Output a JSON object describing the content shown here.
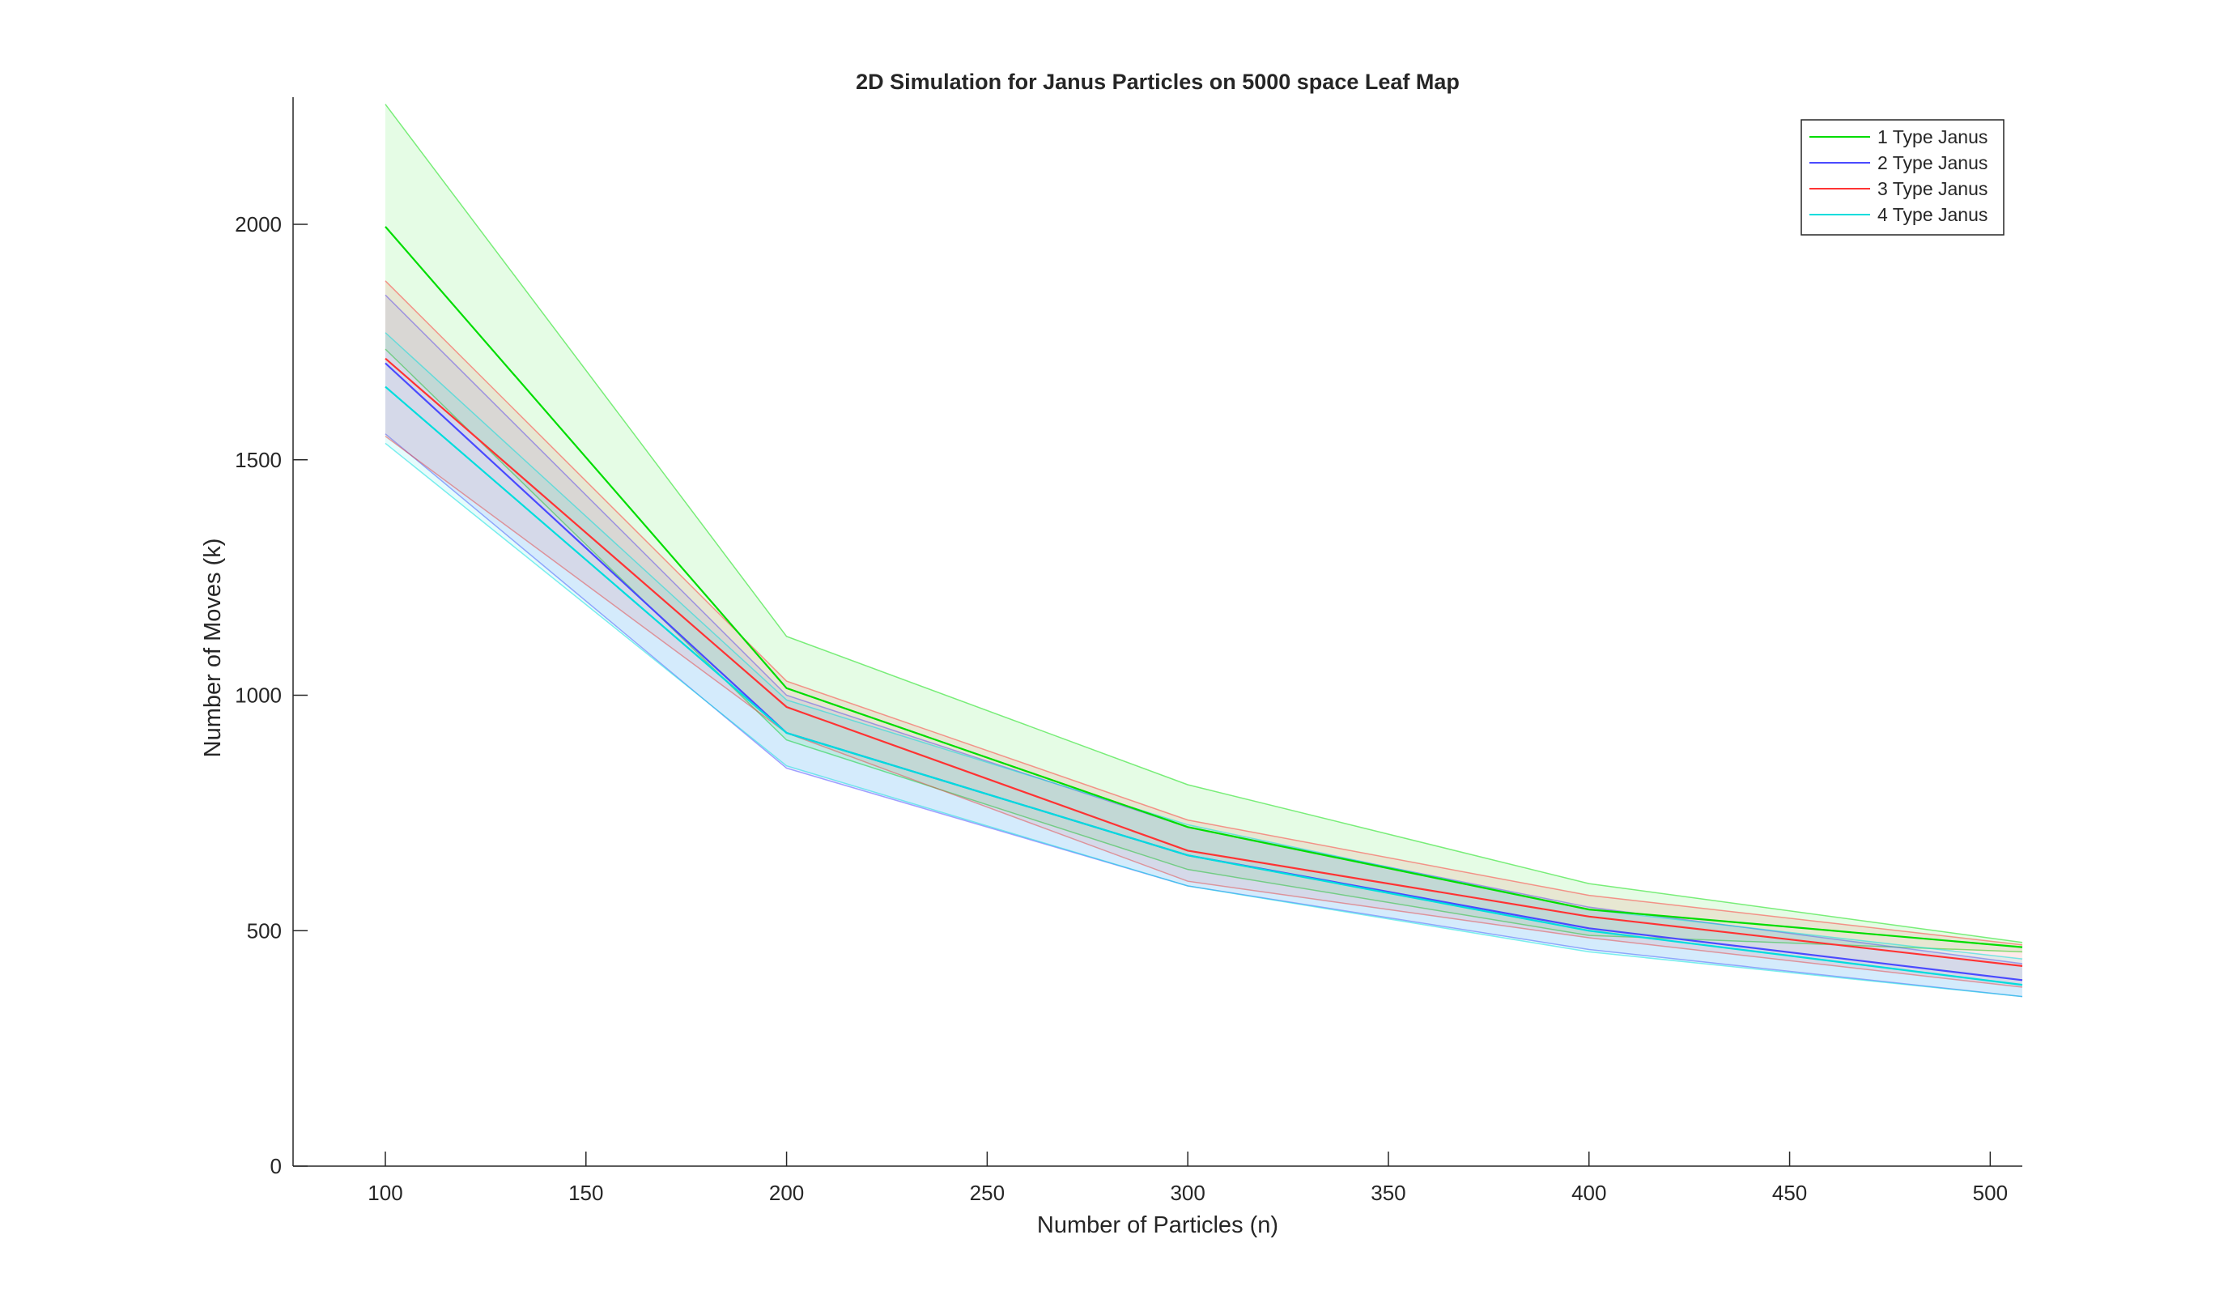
{
  "chart_data": {
    "type": "line",
    "title": "2D Simulation for Janus Particles on 5000 space Leaf Map",
    "xlabel": "Number of Particles (n)",
    "ylabel": "Number of Moves (k)",
    "xlim": [
      77,
      508
    ],
    "ylim": [
      0,
      2270
    ],
    "xticks": [
      100,
      150,
      200,
      250,
      300,
      350,
      400,
      450,
      500
    ],
    "yticks": [
      0,
      500,
      1000,
      1500,
      2000
    ],
    "grid": false,
    "legend_position": "top-right",
    "x": [
      100,
      200,
      300,
      400,
      508
    ],
    "series": [
      {
        "name": "1 Type Janus",
        "color": "#00dd00",
        "values": [
          1995,
          1015,
          720,
          545,
          465
        ],
        "upper": [
          2255,
          1125,
          810,
          600,
          475
        ],
        "lower": [
          1735,
          905,
          630,
          490,
          455
        ]
      },
      {
        "name": "2 Type Janus",
        "color": "#4a4aff",
        "values": [
          1705,
          920,
          660,
          505,
          395
        ],
        "upper": [
          1850,
          1000,
          720,
          550,
          430
        ],
        "lower": [
          1555,
          845,
          595,
          460,
          360
        ]
      },
      {
        "name": "3 Type Janus",
        "color": "#ff3333",
        "values": [
          1715,
          975,
          670,
          530,
          425
        ],
        "upper": [
          1880,
          1030,
          735,
          575,
          470
        ],
        "lower": [
          1550,
          920,
          605,
          485,
          380
        ]
      },
      {
        "name": "4 Type Janus",
        "color": "#00dddd",
        "values": [
          1655,
          920,
          660,
          500,
          385
        ],
        "upper": [
          1770,
          990,
          725,
          545,
          440
        ],
        "lower": [
          1535,
          850,
          595,
          455,
          360
        ]
      }
    ]
  }
}
